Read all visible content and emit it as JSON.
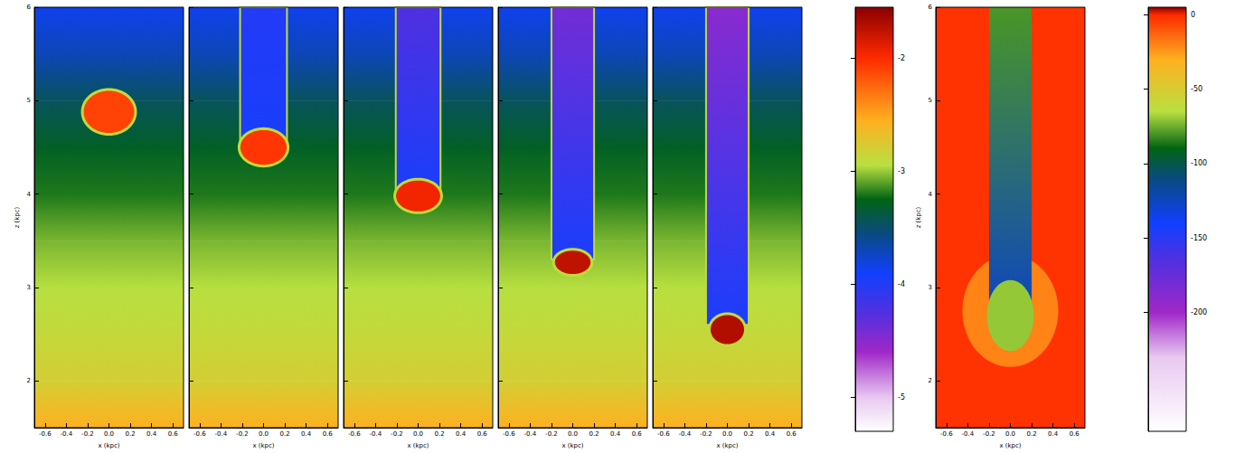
{
  "chart_data": [
    {
      "type": "map",
      "x_label": "x (kpc)",
      "y_label": "z (kpc)",
      "xlim": [
        -0.7,
        0.7
      ],
      "ylim": [
        1.5,
        6
      ],
      "xticks": [
        -0.6,
        -0.4,
        -0.2,
        {
          "value": 0,
          "label": "0.0"
        },
        0.2,
        0.4,
        0.6
      ],
      "yticks": [
        2,
        3,
        4,
        5,
        6
      ],
      "background": {
        "z": [
          1.5,
          2,
          2.5,
          3,
          3.5,
          4,
          4.5,
          5,
          5.5,
          6
        ],
        "values": [
          -2.55,
          -2.8,
          -2.88,
          -2.95,
          -3.05,
          -3.2,
          -3.3,
          -3.45,
          -3.7,
          -3.85
        ]
      },
      "layers": [
        {
          "shape": "ellipse",
          "x": 0,
          "z": 4.88,
          "rx": 0.25,
          "rz": 0.24,
          "value": -2.1,
          "rim": -2.9
        }
      ]
    },
    {
      "type": "map",
      "x_label": "x (kpc)",
      "tick_labels": "x",
      "xlim": [
        -0.7,
        0.7
      ],
      "ylim": [
        1.5,
        6
      ],
      "xticks": [
        -0.6,
        -0.4,
        -0.2,
        {
          "value": 0,
          "label": "0.0"
        },
        0.2,
        0.4,
        0.6
      ],
      "yticks": [
        2,
        3,
        4,
        5,
        6
      ],
      "background": {
        "z": [
          1.5,
          2,
          2.5,
          3,
          3.5,
          4,
          4.5,
          5,
          5.5,
          6
        ],
        "values": [
          -2.55,
          -2.8,
          -2.88,
          -2.95,
          -3.05,
          -3.2,
          -3.3,
          -3.45,
          -3.7,
          -3.85
        ]
      },
      "layers": [
        {
          "shape": "band",
          "x": [
            -0.22,
            0.22
          ],
          "z": [
            4.55,
            6
          ],
          "values": [
            -3.95,
            -4.0
          ],
          "rim": -2.9
        },
        {
          "shape": "ellipse",
          "x": 0,
          "z": 4.5,
          "rx": 0.23,
          "rz": 0.2,
          "value": -2.05,
          "rim": -2.9
        }
      ]
    },
    {
      "type": "map",
      "x_label": "x (kpc)",
      "tick_labels": "x",
      "xlim": [
        -0.7,
        0.7
      ],
      "ylim": [
        1.5,
        6
      ],
      "xticks": [
        -0.6,
        -0.4,
        -0.2,
        {
          "value": 0,
          "label": "0.0"
        },
        0.2,
        0.4,
        0.6
      ],
      "yticks": [
        2,
        3,
        4,
        5,
        6
      ],
      "background": {
        "z": [
          1.5,
          2,
          2.5,
          3,
          3.5,
          4,
          4.5,
          5,
          5.5,
          6
        ],
        "values": [
          -2.55,
          -2.8,
          -2.88,
          -2.95,
          -3.05,
          -3.2,
          -3.3,
          -3.45,
          -3.7,
          -3.85
        ]
      },
      "layers": [
        {
          "shape": "band",
          "x": [
            -0.21,
            0.21
          ],
          "z": [
            4.0,
            6
          ],
          "values": [
            -3.95,
            -4.25
          ],
          "rim": -2.9
        },
        {
          "shape": "ellipse",
          "x": 0,
          "z": 3.98,
          "rx": 0.22,
          "rz": 0.18,
          "value": -1.95,
          "rim": -2.9
        }
      ]
    },
    {
      "type": "map",
      "x_label": "x (kpc)",
      "tick_labels": "x",
      "xlim": [
        -0.7,
        0.7
      ],
      "ylim": [
        1.5,
        6
      ],
      "xticks": [
        -0.6,
        -0.4,
        -0.2,
        {
          "value": 0,
          "label": "0.0"
        },
        0.2,
        0.4,
        0.6
      ],
      "yticks": [
        2,
        3,
        4,
        5,
        6
      ],
      "background": {
        "z": [
          1.5,
          2,
          2.5,
          3,
          3.5,
          4,
          4.5,
          5,
          5.5,
          6
        ],
        "values": [
          -2.55,
          -2.8,
          -2.88,
          -2.95,
          -3.05,
          -3.2,
          -3.3,
          -3.45,
          -3.7,
          -3.85
        ]
      },
      "layers": [
        {
          "shape": "band",
          "x": [
            -0.2,
            0.2
          ],
          "z": [
            3.3,
            6
          ],
          "values": [
            -3.95,
            -4.4
          ],
          "rim": -2.9
        },
        {
          "shape": "ellipse",
          "x": 0,
          "z": 3.27,
          "rx": 0.18,
          "rz": 0.14,
          "value": -1.75,
          "rim": -2.9
        }
      ]
    },
    {
      "type": "map",
      "x_label": "x (kpc)",
      "tick_labels": "x",
      "xlim": [
        -0.7,
        0.7
      ],
      "ylim": [
        1.5,
        6
      ],
      "xticks": [
        -0.6,
        -0.4,
        -0.2,
        {
          "value": 0,
          "label": "0.0"
        },
        0.2,
        0.4,
        0.6
      ],
      "yticks": [
        2,
        3,
        4,
        5,
        6
      ],
      "background": {
        "z": [
          1.5,
          2,
          2.5,
          3,
          3.5,
          4,
          4.5,
          5,
          5.5,
          6
        ],
        "values": [
          -2.55,
          -2.8,
          -2.88,
          -2.95,
          -3.05,
          -3.2,
          -3.3,
          -3.45,
          -3.7,
          -3.85
        ]
      },
      "layers": [
        {
          "shape": "band",
          "x": [
            -0.2,
            0.2
          ],
          "z": [
            2.6,
            6
          ],
          "values": [
            -3.95,
            -4.5
          ],
          "rim": -2.9
        },
        {
          "shape": "ellipse",
          "x": 0,
          "z": 2.55,
          "rx": 0.17,
          "rz": 0.17,
          "value": -1.7,
          "rim": -2.9
        }
      ]
    },
    {
      "type": "colorbar",
      "range": [
        -5.3,
        -1.55
      ],
      "ticks": [
        -5,
        -4,
        -3,
        -2
      ]
    },
    {
      "type": "map",
      "x_label": "x (kpc)",
      "y_label": "z (kpc)",
      "xlim": [
        -0.7,
        0.7
      ],
      "ylim": [
        1.5,
        6
      ],
      "xticks": [
        -0.6,
        -0.4,
        -0.2,
        {
          "value": 0,
          "label": "0.0"
        },
        0.2,
        0.4,
        0.6
      ],
      "yticks": [
        2,
        3,
        4,
        5,
        6
      ],
      "background": {
        "z": [
          1.5,
          6
        ],
        "values": [
          -2,
          -2
        ]
      },
      "layers": [
        {
          "shape": "ellipse",
          "x": 0,
          "z": 2.75,
          "rx": 0.45,
          "rz": 0.6,
          "value": -20
        },
        {
          "shape": "band",
          "x": [
            -0.2,
            0.2
          ],
          "z": [
            2.7,
            6
          ],
          "values": [
            -125,
            -80
          ]
        },
        {
          "shape": "ellipse",
          "x": 0,
          "z": 2.7,
          "rx": 0.22,
          "rz": 0.38,
          "value": -70
        }
      ]
    },
    {
      "type": "colorbar",
      "range": [
        -280,
        5
      ],
      "ticks": [
        -200,
        -150,
        -100,
        -50,
        0
      ]
    }
  ]
}
